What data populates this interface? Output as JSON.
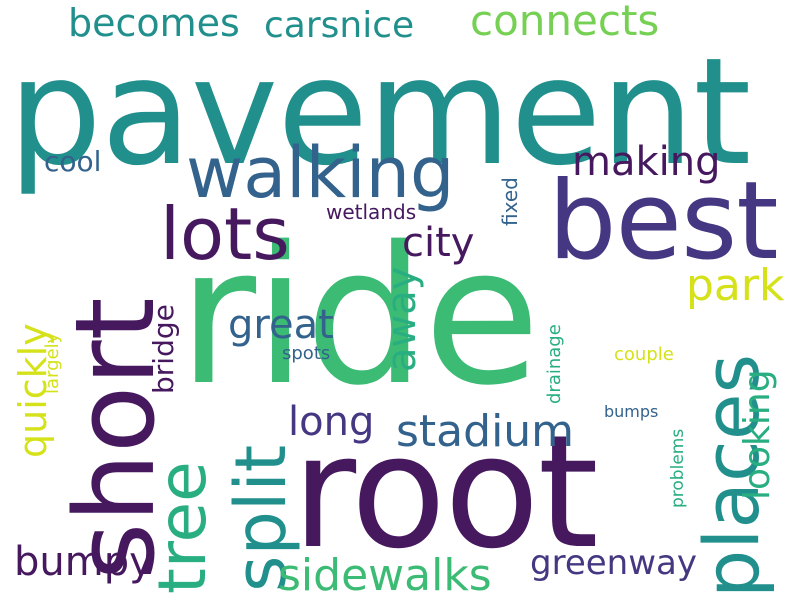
{
  "colors": {
    "background": "#ffffff",
    "dark_purple": "#46195f",
    "indigo": "#453781",
    "steel_blue": "#33638d",
    "teal": "#21908d",
    "sea_green": "#28ae80",
    "green": "#3cbb75",
    "lime": "#75d054",
    "yellow": "#d5e21a"
  },
  "words": {
    "pavement": "pavement",
    "ride": "ride",
    "root": "root",
    "best": "best",
    "short": "short",
    "walking": "walking",
    "lots": "lots",
    "places": "places",
    "split": "split",
    "tree": "tree",
    "becomes": "becomes",
    "carsnice": "carsnice",
    "connects": "connects",
    "making": "making",
    "park": "park",
    "city": "city",
    "great": "great",
    "long": "long",
    "stadium": "stadium",
    "bumpy": "bumpy",
    "sidewalks": "sidewalks",
    "greenway": "greenway",
    "cool": "cool",
    "quickly": "quickly",
    "away": "away",
    "looking": "looking",
    "bridge": "bridge",
    "wetlands": "wetlands",
    "fixed": "fixed",
    "spots": "spots",
    "largely": "largely",
    "drainage": "drainage",
    "couple": "couple",
    "bumps": "bumps",
    "problems": "problems"
  }
}
